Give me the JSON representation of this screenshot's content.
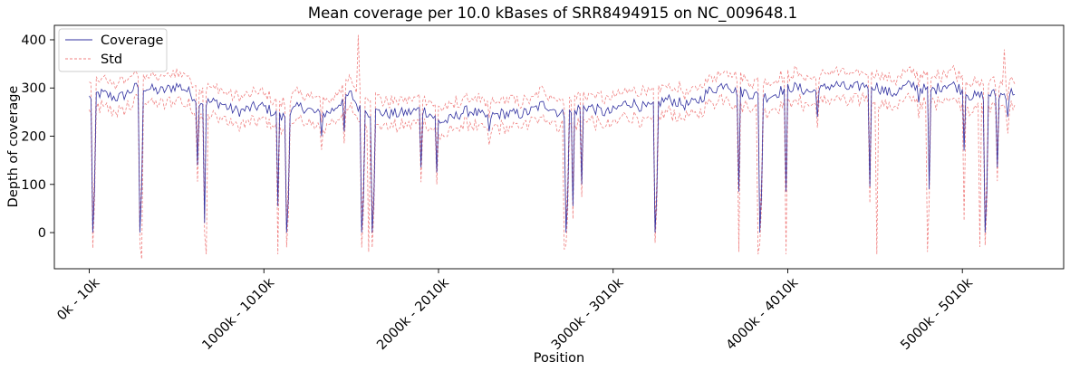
{
  "chart_data": {
    "type": "line",
    "title": "Mean coverage per 10.0 kBases of SRR8494915 on NC_009648.1",
    "xlabel": "Position",
    "ylabel": "Depth of coverage",
    "ylim": [
      -75,
      430
    ],
    "yticks": [
      0,
      100,
      200,
      300,
      400
    ],
    "xlim_kb": [
      -200,
      5580
    ],
    "xtick_positions_kb": [
      0,
      1000,
      2000,
      3000,
      4000,
      5000
    ],
    "xtick_labels": [
      "0k - 10k",
      "1000k - 1010k",
      "2000k - 2010k",
      "3000k - 3010k",
      "4000k - 4010k",
      "5000k - 5010k"
    ],
    "x_bin_start_kb_step": 10,
    "x_range_kb": [
      0,
      5300
    ],
    "grid": false,
    "legend_position": "top-left",
    "colors": {
      "coverage": "#3030a0",
      "std": "#f08080"
    },
    "series": [
      {
        "name": "Coverage",
        "baseline_x_kb": [
          0,
          150,
          250,
          400,
          500,
          600,
          700,
          800,
          900,
          1000,
          1100,
          1200,
          1300,
          1400,
          1500,
          1550,
          1700,
          1800,
          1900,
          2000,
          2100,
          2200,
          2300,
          2400,
          2500,
          2600,
          2700,
          2800,
          2900,
          3000,
          3100,
          3200,
          3300,
          3400,
          3500,
          3600,
          3650,
          3700,
          3800,
          3900,
          4000,
          4100,
          4200,
          4300,
          4400,
          4500,
          4600,
          4700,
          4800,
          4900,
          5000,
          5100,
          5200,
          5300
        ],
        "baseline_y": [
          280,
          285,
          295,
          300,
          300,
          285,
          270,
          255,
          260,
          255,
          245,
          255,
          250,
          255,
          285,
          260,
          240,
          255,
          250,
          235,
          240,
          250,
          245,
          240,
          255,
          260,
          250,
          255,
          255,
          255,
          265,
          265,
          270,
          270,
          275,
          300,
          320,
          295,
          280,
          290,
          295,
          300,
          295,
          305,
          305,
          300,
          295,
          300,
          300,
          305,
          295,
          285,
          280,
          300
        ],
        "dips": [
          {
            "x_kb": 25,
            "y": 0
          },
          {
            "x_kb": 290,
            "y": 0
          },
          {
            "x_kb": 620,
            "y": 140
          },
          {
            "x_kb": 660,
            "y": 20
          },
          {
            "x_kb": 1080,
            "y": 55
          },
          {
            "x_kb": 1130,
            "y": 0
          },
          {
            "x_kb": 1330,
            "y": 200
          },
          {
            "x_kb": 1460,
            "y": 210
          },
          {
            "x_kb": 1560,
            "y": 0
          },
          {
            "x_kb": 1620,
            "y": 0
          },
          {
            "x_kb": 1900,
            "y": 135
          },
          {
            "x_kb": 1990,
            "y": 125
          },
          {
            "x_kb": 2290,
            "y": 210
          },
          {
            "x_kb": 2730,
            "y": 0
          },
          {
            "x_kb": 2770,
            "y": 55
          },
          {
            "x_kb": 2820,
            "y": 100
          },
          {
            "x_kb": 3240,
            "y": 0
          },
          {
            "x_kb": 3720,
            "y": 85
          },
          {
            "x_kb": 3840,
            "y": 0
          },
          {
            "x_kb": 3990,
            "y": 85
          },
          {
            "x_kb": 4170,
            "y": 240
          },
          {
            "x_kb": 4470,
            "y": 95
          },
          {
            "x_kb": 4750,
            "y": 270
          },
          {
            "x_kb": 4810,
            "y": 90
          },
          {
            "x_kb": 5010,
            "y": 170
          },
          {
            "x_kb": 5130,
            "y": 0
          },
          {
            "x_kb": 5200,
            "y": 135
          },
          {
            "x_kb": 5260,
            "y": 240
          }
        ]
      },
      {
        "name": "Std",
        "band_half_width": 25,
        "spikes": [
          {
            "x_kb": 15,
            "y": 310
          },
          {
            "x_kb": 300,
            "y": -55
          },
          {
            "x_kb": 670,
            "y": -45
          },
          {
            "x_kb": 1080,
            "y": -45
          },
          {
            "x_kb": 1540,
            "y": 410
          },
          {
            "x_kb": 1600,
            "y": -40
          },
          {
            "x_kb": 2720,
            "y": -35
          },
          {
            "x_kb": 3720,
            "y": -40
          },
          {
            "x_kb": 3830,
            "y": -45
          },
          {
            "x_kb": 3990,
            "y": -45
          },
          {
            "x_kb": 4510,
            "y": -45
          },
          {
            "x_kb": 4800,
            "y": -40
          },
          {
            "x_kb": 5010,
            "y": 25
          },
          {
            "x_kb": 5100,
            "y": -30
          },
          {
            "x_kb": 5240,
            "y": 380
          }
        ]
      }
    ]
  }
}
